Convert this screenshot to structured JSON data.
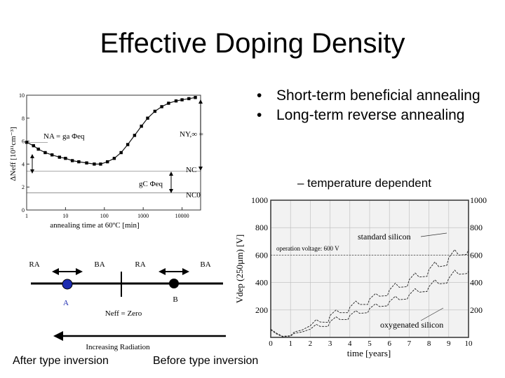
{
  "slide": {
    "title": "Effective Doping Density",
    "bullets": [
      "Short-term beneficial annealing",
      "Long-term reverse annealing"
    ],
    "sub_bullet": "– temperature dependent",
    "caption_left": "After type inversion",
    "caption_right": "Before type inversion"
  },
  "diagram": {
    "ra_left": "RA",
    "ba_left": "BA",
    "ra_right": "RA",
    "ba_right": "BA",
    "point_a": "A",
    "point_b": "B",
    "neff_label": "Neff = Zero",
    "radiation_label": "Increasing Radiation"
  },
  "chart_data": [
    {
      "type": "line",
      "title": "",
      "xlabel": "annealing time at 60ºC [min]",
      "ylabel": "ΔNeff [10¹¹cm⁻³]",
      "xscale": "log",
      "xlim": [
        1,
        30000
      ],
      "ylim": [
        0,
        10
      ],
      "x_ticks": [
        "1",
        "10",
        "100",
        "1000",
        "10000"
      ],
      "y_ticks": [
        "0",
        "2",
        "4",
        "6",
        "8",
        "10"
      ],
      "annotations": [
        "NA = ga Φeq",
        "NY,∞ = gY Φeq",
        "NC",
        "gC Φeq",
        "NC0"
      ],
      "reference_levels": {
        "NC": 3.4,
        "NC0": 1.5,
        "NY_top": 10.0
      },
      "series": [
        {
          "x": [
            1,
            1.5,
            2,
            3,
            4.5,
            7,
            10,
            15,
            22,
            35,
            55,
            80,
            120,
            180,
            270,
            400,
            600,
            900,
            1300,
            2000,
            3000,
            4500,
            7000,
            10000,
            15000,
            22000
          ],
          "values": [
            5.9,
            5.6,
            5.3,
            5.0,
            4.8,
            4.6,
            4.5,
            4.3,
            4.2,
            4.1,
            4.0,
            4.0,
            4.2,
            4.5,
            5.0,
            5.7,
            6.5,
            7.3,
            8.0,
            8.6,
            9.0,
            9.3,
            9.5,
            9.6,
            9.7,
            9.8
          ]
        }
      ]
    },
    {
      "type": "line",
      "title": "",
      "xlabel": "time [years]",
      "ylabel": "Vdep (250µm) [V]",
      "xlim": [
        0,
        10
      ],
      "ylim": [
        0,
        1000
      ],
      "x_ticks": [
        "0",
        "1",
        "2",
        "3",
        "4",
        "5",
        "6",
        "7",
        "8",
        "9",
        "10"
      ],
      "y_ticks": [
        "200",
        "400",
        "600",
        "800",
        "1000"
      ],
      "reference_line": {
        "y": 600,
        "label": "operation voltage: 600 V"
      },
      "series": [
        {
          "name": "standard silicon",
          "x": [
            0,
            0.3,
            0.6,
            1.0,
            1.2,
            1.6,
            2.0,
            2.3,
            2.5,
            2.9,
            3.0,
            3.3,
            3.5,
            3.9,
            4.0,
            4.3,
            4.5,
            4.9,
            5.0,
            5.3,
            5.5,
            5.9,
            6.0,
            6.3,
            6.5,
            6.9,
            7.0,
            7.3,
            7.5,
            7.9,
            8.0,
            8.3,
            8.5,
            8.9,
            9.0,
            9.3,
            9.5,
            9.9,
            10
          ],
          "values": [
            60,
            30,
            8,
            12,
            40,
            55,
            85,
            130,
            112,
            110,
            160,
            200,
            180,
            180,
            220,
            265,
            240,
            240,
            280,
            320,
            300,
            305,
            345,
            395,
            365,
            370,
            420,
            470,
            440,
            445,
            495,
            550,
            515,
            525,
            580,
            640,
            600,
            605,
            640
          ]
        },
        {
          "name": "oxygenated silicon",
          "x": [
            0,
            0.3,
            0.6,
            1.0,
            1.2,
            1.6,
            2.0,
            2.3,
            2.5,
            2.9,
            3.0,
            3.3,
            3.5,
            3.9,
            4.0,
            4.3,
            4.5,
            4.9,
            5.0,
            5.3,
            5.5,
            5.9,
            6.0,
            6.3,
            6.5,
            6.9,
            7.0,
            7.3,
            7.5,
            7.9,
            8.0,
            8.3,
            8.5,
            8.9,
            9.0,
            9.3,
            9.5,
            9.9,
            10
          ],
          "values": [
            55,
            25,
            5,
            10,
            30,
            40,
            60,
            95,
            80,
            80,
            115,
            150,
            130,
            130,
            160,
            195,
            175,
            180,
            210,
            245,
            225,
            230,
            260,
            300,
            275,
            280,
            310,
            355,
            330,
            335,
            370,
            420,
            390,
            395,
            430,
            490,
            460,
            465,
            480
          ]
        }
      ]
    }
  ]
}
